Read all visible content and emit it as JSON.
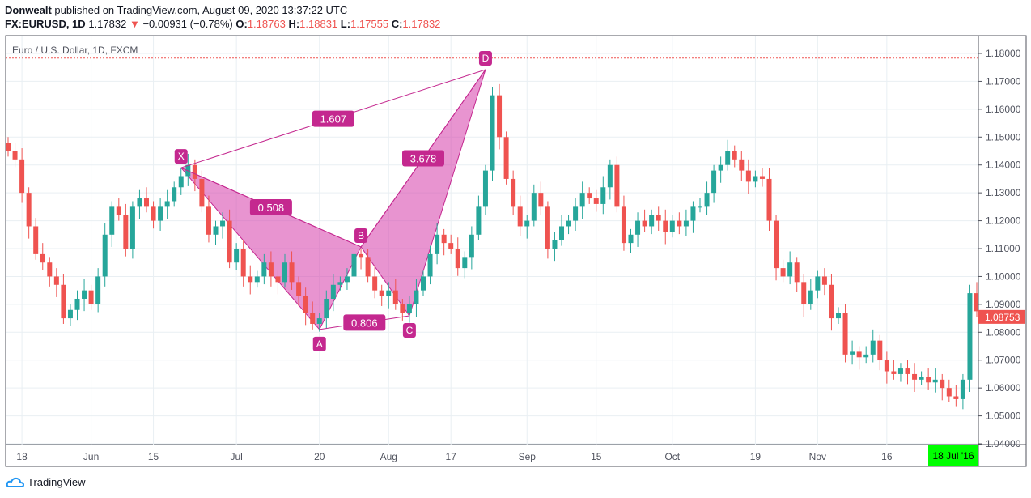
{
  "header": {
    "author": "Donwealt",
    "published": "published on TradingView.com, August 09, 2020 13:37:22 UTC",
    "symbol": "FX:EURUSD, 1D",
    "last": "1.17832",
    "change": "−0.00931 (−0.78%)",
    "o_label": "O:",
    "o": "1.18763",
    "h_label": "H:",
    "h": "1.18831",
    "l_label": "L:",
    "l": "1.17555",
    "c_label": "C:",
    "c": "1.17832"
  },
  "footer": {
    "brand": "TradingView"
  },
  "chart_data": {
    "type": "candlestick",
    "title": "Euro / U.S. Dollar, 1D, FXCM",
    "ylim": [
      1.04,
      1.185
    ],
    "y_ticks": [
      "1.18000",
      "1.17000",
      "1.16000",
      "1.15000",
      "1.14000",
      "1.13000",
      "1.12000",
      "1.11000",
      "1.10000",
      "1.09000",
      "1.08000",
      "1.07000",
      "1.06000",
      "1.05000",
      "1.04000"
    ],
    "x_ticks": [
      {
        "label": "18",
        "bar": 2
      },
      {
        "label": "Jun",
        "bar": 12
      },
      {
        "label": "15",
        "bar": 21
      },
      {
        "label": "Jul",
        "bar": 33
      },
      {
        "label": "20",
        "bar": 45
      },
      {
        "label": "Aug",
        "bar": 55
      },
      {
        "label": "17",
        "bar": 64
      },
      {
        "label": "Sep",
        "bar": 75
      },
      {
        "label": "15",
        "bar": 85
      },
      {
        "label": "Oct",
        "bar": 96
      },
      {
        "label": "19",
        "bar": 108
      },
      {
        "label": "Nov",
        "bar": 117
      },
      {
        "label": "16",
        "bar": 127
      }
    ],
    "crosshair_date": "18 Jul '16",
    "last_price_label": "1.08753",
    "reference_line": 1.17832,
    "closes": [
      1.145,
      1.142,
      1.13,
      1.118,
      1.108,
      1.105,
      1.1,
      1.097,
      1.085,
      1.088,
      1.092,
      1.095,
      1.09,
      1.1,
      1.115,
      1.125,
      1.122,
      1.11,
      1.125,
      1.128,
      1.125,
      1.12,
      1.125,
      1.127,
      1.132,
      1.136,
      1.14,
      1.135,
      1.125,
      1.115,
      1.118,
      1.12,
      1.105,
      1.11,
      1.1,
      1.098,
      1.1,
      1.105,
      1.1,
      1.098,
      1.105,
      1.098,
      1.093,
      1.087,
      1.083,
      1.085,
      1.092,
      1.097,
      1.098,
      1.1,
      1.108,
      1.107,
      1.1,
      1.095,
      1.093,
      1.095,
      1.09,
      1.087,
      1.09,
      1.095,
      1.1,
      1.108,
      1.115,
      1.112,
      1.11,
      1.103,
      1.107,
      1.115,
      1.125,
      1.138,
      1.165,
      1.15,
      1.135,
      1.125,
      1.118,
      1.12,
      1.13,
      1.125,
      1.11,
      1.113,
      1.118,
      1.12,
      1.125,
      1.13,
      1.128,
      1.126,
      1.132,
      1.14,
      1.125,
      1.112,
      1.115,
      1.12,
      1.118,
      1.122,
      1.12,
      1.116,
      1.12,
      1.118,
      1.12,
      1.125,
      1.125,
      1.13,
      1.138,
      1.14,
      1.145,
      1.142,
      1.138,
      1.134,
      1.136,
      1.135,
      1.12,
      1.103,
      1.1,
      1.105,
      1.098,
      1.09,
      1.095,
      1.1,
      1.097,
      1.085,
      1.087,
      1.072,
      1.073,
      1.071,
      1.072,
      1.077,
      1.07,
      1.066,
      1.065,
      1.067,
      1.065,
      1.063,
      1.064,
      1.062,
      1.063,
      1.06,
      1.057,
      1.056,
      1.063,
      1.094,
      1.08753
    ],
    "pattern": {
      "points": [
        {
          "label": "X",
          "bar": 25,
          "price": 1.139
        },
        {
          "label": "A",
          "bar": 45,
          "price": 1.081
        },
        {
          "label": "B",
          "bar": 51,
          "price": 1.1106
        },
        {
          "label": "C",
          "bar": 58,
          "price": 1.0859
        },
        {
          "label": "D",
          "bar": 69,
          "price": 1.1742
        }
      ],
      "ratios": {
        "XB": "0.508",
        "AC": "0.806",
        "XD": "1.607",
        "BD": "3.678"
      }
    },
    "colors": {
      "up": "#26a69a",
      "down": "#ef5350",
      "pattern": "#c4288f",
      "crosshair": "#00ff00"
    }
  }
}
